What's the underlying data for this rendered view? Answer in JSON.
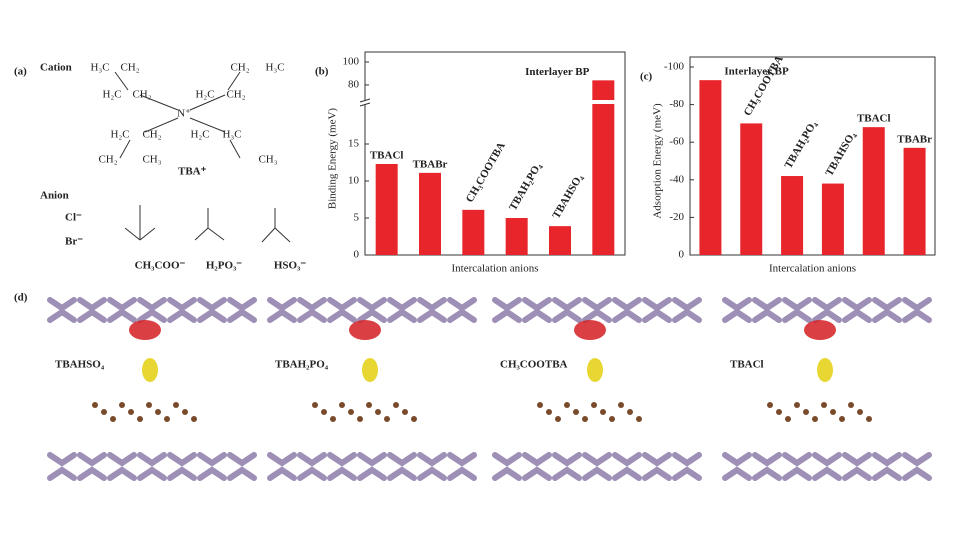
{
  "panel_a": {
    "label": "(a)",
    "cation_title": "Cation",
    "cation_name": "TBA⁺",
    "atoms": [
      "H₃C",
      "CH₂",
      "H₂C",
      "CH₂",
      "N⁺",
      "H₂C",
      "CH₂",
      "CH₂",
      "H₃C",
      "H₂C",
      "CH₂",
      "H₂C",
      "H₃C",
      "CH₂",
      "CH₃",
      "CH₃"
    ],
    "anion_title": "Anion",
    "anions": [
      "Cl⁻",
      "Br⁻",
      "CH₃COO⁻",
      "H₂PO₃⁻",
      "HSO₃⁻"
    ]
  },
  "chart_data": [
    {
      "type": "bar",
      "panel_label": "(b)",
      "x_label": "Intercalation anions",
      "y_label": "Binding Energy (meV)",
      "categories": [
        "TBACl",
        "TBABr",
        "CH₃COOTBA",
        "TBAH₂PO₄",
        "TBAHSO₄",
        "Interlayer BP"
      ],
      "values": [
        12.3,
        11.1,
        6.1,
        5,
        3.9,
        84
      ],
      "color": "#e8252b",
      "ylim": [
        0,
        100
      ],
      "axis_break": [
        20,
        66
      ],
      "yticks": [
        0,
        5,
        10,
        15,
        80,
        100
      ]
    },
    {
      "type": "bar",
      "panel_label": "(c)",
      "x_label": "Intercalation anions",
      "y_label": "Adsorption Energy (meV)",
      "categories": [
        "Interlayer BP",
        "CH₃COOTBA",
        "TBAH₂PO₄",
        "TBAHSO₄",
        "TBACl",
        "TBABr"
      ],
      "values": [
        -93,
        -70,
        -42,
        -38,
        -68,
        -57
      ],
      "color": "#e8252b",
      "ylim": [
        0,
        -100
      ],
      "yticks": [
        0,
        -20,
        -40,
        -60,
        -80,
        -100
      ]
    }
  ],
  "panel_d": {
    "label": "(d)",
    "systems": [
      "TBAHSO₄",
      "TBAH₂PO₄",
      "CH₃COOTBA",
      "TBACl"
    ]
  }
}
